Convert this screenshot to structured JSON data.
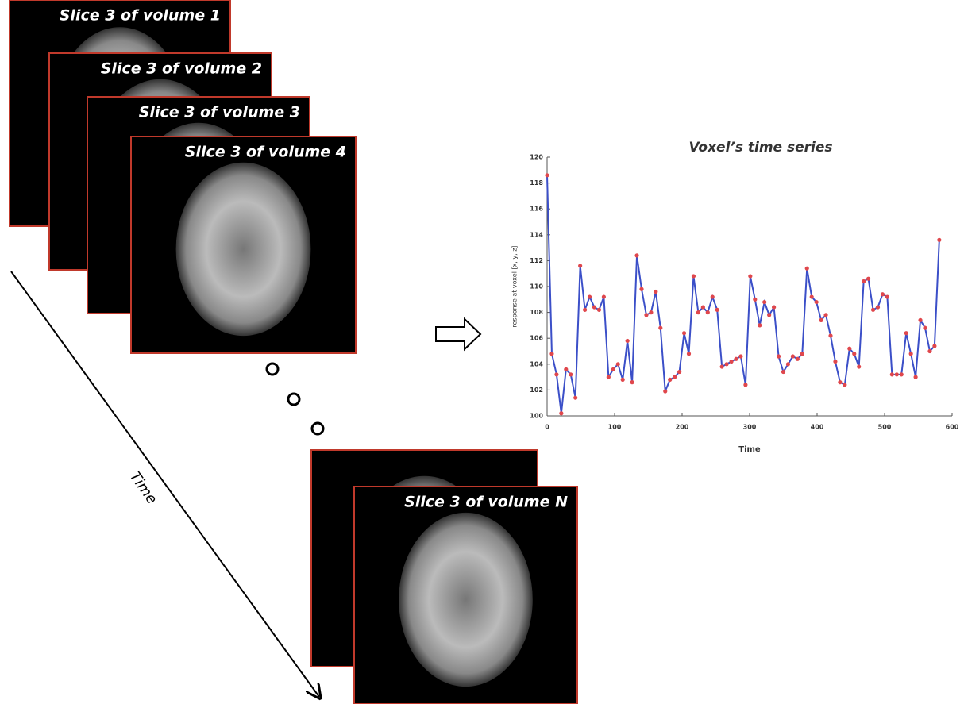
{
  "slices": [
    {
      "label": "Slice 3 of volume 1"
    },
    {
      "label": "Slice 3 of volume 2"
    },
    {
      "label": "Slice 3 of volume 3"
    },
    {
      "label": "Slice 3 of volume 4"
    },
    {
      "label": "Slice 3 of volume N"
    }
  ],
  "time_label": "Time",
  "chart_data": {
    "type": "line",
    "title": "Voxel’s time series",
    "x_label": "Time",
    "y_label": "response at voxel [x, y, z]",
    "x": [
      0,
      7,
      14,
      21,
      28,
      35,
      42,
      49,
      56,
      63,
      70,
      77,
      84,
      91,
      98,
      105,
      112,
      119,
      126,
      133,
      140,
      147,
      154,
      161,
      168,
      175,
      182,
      189,
      196,
      203,
      210,
      217,
      224,
      231,
      238,
      245,
      252,
      259,
      266,
      273,
      280,
      287,
      294,
      301,
      308,
      315,
      322,
      329,
      336,
      343,
      350,
      357,
      364,
      371,
      378,
      385,
      392,
      399,
      406,
      413,
      420,
      427,
      434,
      441,
      448,
      455,
      462,
      469,
      476,
      483,
      490,
      497,
      504,
      511,
      518,
      525,
      532,
      539,
      546,
      553,
      560,
      567,
      574,
      581
    ],
    "values": [
      118.6,
      104.8,
      103.2,
      100.2,
      103.6,
      103.2,
      101.4,
      111.6,
      108.2,
      109.2,
      108.4,
      108.2,
      109.2,
      103.0,
      103.6,
      104.0,
      102.8,
      105.8,
      102.6,
      112.4,
      109.8,
      107.8,
      108.0,
      109.6,
      106.8,
      101.9,
      102.8,
      103.0,
      103.4,
      106.4,
      104.8,
      110.8,
      108.0,
      108.4,
      108.0,
      109.2,
      108.2,
      103.8,
      104.0,
      104.2,
      104.4,
      104.6,
      102.4,
      110.8,
      109.0,
      107.0,
      108.8,
      107.8,
      108.4,
      104.6,
      103.4,
      104.0,
      104.6,
      104.4,
      104.8,
      111.4,
      109.2,
      108.8,
      107.4,
      107.8,
      106.2,
      104.2,
      102.6,
      102.4,
      105.2,
      104.8,
      103.8,
      110.4,
      110.6,
      108.2,
      108.4,
      109.4,
      109.2,
      103.2,
      103.2,
      103.2,
      106.4,
      104.8,
      103.0,
      107.4,
      106.8,
      105.0,
      105.4,
      113.6
    ],
    "color": "#3b4fc8",
    "marker_color": "#e0474c",
    "xlim": [
      0,
      600
    ],
    "ylim": [
      100,
      120
    ],
    "xticks": [
      0,
      100,
      200,
      300,
      400,
      500,
      600
    ],
    "yticks": [
      100,
      102,
      104,
      106,
      108,
      110,
      112,
      114,
      116,
      118,
      120
    ]
  }
}
